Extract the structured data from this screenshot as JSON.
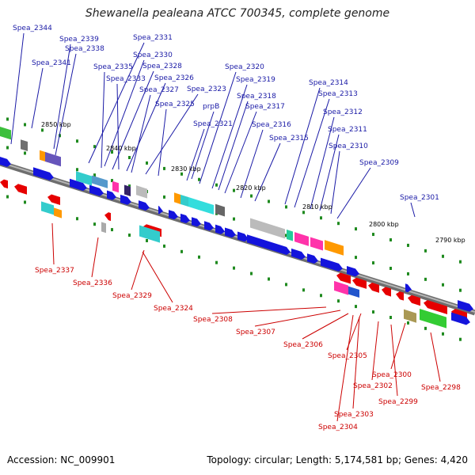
{
  "title": "Shewanella pealeana ATCC 700345, complete genome",
  "accession": "Accession: NC_009901",
  "summary": "Topology: circular; Length: 5,174,581 bp; Genes: 4,420",
  "colors": {
    "forward_label": "#1a1aa6",
    "reverse_label": "#cc0000",
    "forward_gene": "#1414dc",
    "reverse_gene": "#e60000",
    "backbone": "#8a8a8a"
  },
  "scale_labels": [
    "2850 kbp",
    "2840 kbp",
    "2830 kbp",
    "2820 kbp",
    "2810 kbp",
    "2800 kbp",
    "2790 kbp"
  ],
  "top_labels": [
    "Spea_2344",
    "Spea_2339",
    "Spea_2338",
    "Spea_2341",
    "Spea_2331",
    "Spea_2330",
    "Spea_2335",
    "Spea_2328",
    "Spea_2333",
    "Spea_2326",
    "Spea_2327",
    "Spea_2323",
    "Spea_2325",
    "prpB",
    "Spea_2320",
    "Spea_2319",
    "Spea_2318",
    "Spea_2317",
    "Spea_2321",
    "Spea_2316",
    "Spea_2314",
    "Spea_2313",
    "Spea_2312",
    "Spea_2311",
    "Spea_2315",
    "Spea_2310",
    "Spea_2309",
    "Spea_2301"
  ],
  "bottom_labels": [
    "Spea_2337",
    "Spea_2336",
    "Spea_2329",
    "Spea_2324",
    "Spea_2308",
    "Spea_2307",
    "Spea_2306",
    "Spea_2305",
    "Spea_2300",
    "Spea_2298",
    "Spea_2302",
    "Spea_2299",
    "Spea_2303",
    "Spea_2304"
  ]
}
